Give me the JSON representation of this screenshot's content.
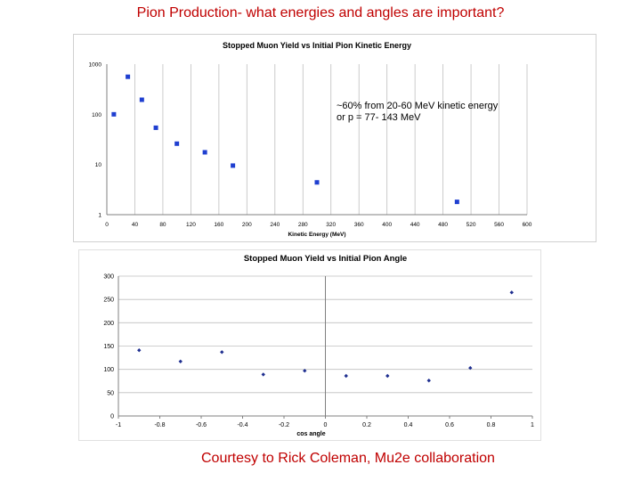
{
  "slide": {
    "title": "Pion Production- what energies and angles are important?",
    "credit": "Courtesy to Rick Coleman, Mu2e collaboration"
  },
  "chart_data": [
    {
      "type": "scatter",
      "title": "Stopped Muon Yield vs Initial Pion Kinetic Energy",
      "xlabel": "Kinetic Energy (MeV)",
      "ylabel": "",
      "yscale": "log",
      "xlim": [
        0,
        600
      ],
      "ylim": [
        1,
        1000
      ],
      "xticks": [
        0,
        40,
        80,
        120,
        160,
        200,
        240,
        280,
        320,
        360,
        400,
        440,
        480,
        520,
        560,
        600
      ],
      "yticks": [
        1,
        10,
        100,
        1000
      ],
      "ytick_labels": [
        "1",
        "10",
        "100",
        "1000"
      ],
      "grid": "vertical",
      "series_color": "#1f3fd0",
      "points": [
        {
          "x": 10,
          "y": 100
        },
        {
          "x": 30,
          "y": 560
        },
        {
          "x": 50,
          "y": 195
        },
        {
          "x": 70,
          "y": 54
        },
        {
          "x": 100,
          "y": 26
        },
        {
          "x": 140,
          "y": 17.5
        },
        {
          "x": 180,
          "y": 9.5
        },
        {
          "x": 300,
          "y": 4.4
        },
        {
          "x": 500,
          "y": 1.8
        }
      ],
      "annotation": [
        "~60% from 20-60 MeV kinetic energy",
        "or p = 77- 143 MeV"
      ]
    },
    {
      "type": "scatter",
      "title": "Stopped Muon Yield vs Initial Pion Angle",
      "xlabel": "cos angle",
      "ylabel": "",
      "xlim": [
        -1,
        1
      ],
      "ylim": [
        0,
        300
      ],
      "xticks": [
        -1,
        -0.8,
        -0.6,
        -0.4,
        -0.2,
        0,
        0.2,
        0.4,
        0.6,
        0.8,
        1
      ],
      "xtick_labels": [
        "-1",
        "-0.8",
        "-0.6",
        "-0.4",
        "-0.2",
        "0",
        "0.2",
        "0.4",
        "0.6",
        "0.8",
        "1"
      ],
      "yticks": [
        0,
        50,
        100,
        150,
        200,
        250,
        300
      ],
      "grid": "horizontal",
      "series_color": "#1f2f90",
      "points": [
        {
          "x": -0.9,
          "y": 141
        },
        {
          "x": -0.7,
          "y": 117
        },
        {
          "x": -0.5,
          "y": 137
        },
        {
          "x": -0.3,
          "y": 89
        },
        {
          "x": -0.1,
          "y": 97
        },
        {
          "x": 0.1,
          "y": 86
        },
        {
          "x": 0.3,
          "y": 86
        },
        {
          "x": 0.5,
          "y": 76
        },
        {
          "x": 0.7,
          "y": 103
        },
        {
          "x": 0.9,
          "y": 265
        }
      ]
    }
  ]
}
